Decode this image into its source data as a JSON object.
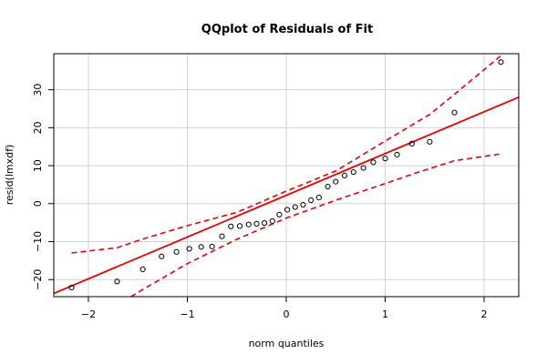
{
  "chart_data": {
    "type": "scatter",
    "title": "QQplot of Residuals of Fit",
    "xlabel": "norm quantiles",
    "ylabel": "resid(lmxdf)",
    "xlim": [
      -2.35,
      2.35
    ],
    "ylim": [
      -24.5,
      39.5
    ],
    "x_ticks": [
      -2,
      -1,
      0,
      1,
      2
    ],
    "y_ticks": [
      -20,
      -10,
      0,
      10,
      20,
      30
    ],
    "grid": true,
    "points": [
      {
        "x": -2.17,
        "y": -22.1
      },
      {
        "x": -1.71,
        "y": -20.5
      },
      {
        "x": -1.45,
        "y": -17.3
      },
      {
        "x": -1.26,
        "y": -13.9
      },
      {
        "x": -1.11,
        "y": -12.7
      },
      {
        "x": -0.98,
        "y": -11.9
      },
      {
        "x": -0.86,
        "y": -11.4
      },
      {
        "x": -0.75,
        "y": -11.3
      },
      {
        "x": -0.65,
        "y": -8.6
      },
      {
        "x": -0.56,
        "y": -6.0
      },
      {
        "x": -0.47,
        "y": -5.9
      },
      {
        "x": -0.38,
        "y": -5.5
      },
      {
        "x": -0.3,
        "y": -5.3
      },
      {
        "x": -0.22,
        "y": -5.1
      },
      {
        "x": -0.14,
        "y": -4.6
      },
      {
        "x": -0.07,
        "y": -2.9
      },
      {
        "x": 0.01,
        "y": -1.6
      },
      {
        "x": 0.09,
        "y": -0.9
      },
      {
        "x": 0.17,
        "y": -0.3
      },
      {
        "x": 0.25,
        "y": 0.9
      },
      {
        "x": 0.33,
        "y": 1.6
      },
      {
        "x": 0.42,
        "y": 4.5
      },
      {
        "x": 0.5,
        "y": 5.8
      },
      {
        "x": 0.59,
        "y": 7.4
      },
      {
        "x": 0.68,
        "y": 8.3
      },
      {
        "x": 0.78,
        "y": 9.4
      },
      {
        "x": 0.88,
        "y": 10.9
      },
      {
        "x": 1.0,
        "y": 11.9
      },
      {
        "x": 1.12,
        "y": 12.9
      },
      {
        "x": 1.27,
        "y": 15.8
      },
      {
        "x": 1.45,
        "y": 16.3
      },
      {
        "x": 1.7,
        "y": 24.0
      },
      {
        "x": 2.17,
        "y": 37.3
      }
    ],
    "reference_line": {
      "intercept": 2.2,
      "slope": 11.0,
      "color": "#ee0000"
    },
    "envelope_upper": [
      {
        "x": -2.17,
        "y": -13.0
      },
      {
        "x": -1.71,
        "y": -11.6
      },
      {
        "x": -1.45,
        "y": -9.3
      },
      {
        "x": -1.0,
        "y": -5.8
      },
      {
        "x": -0.5,
        "y": -2.3
      },
      {
        "x": 0.0,
        "y": 3.3
      },
      {
        "x": 0.5,
        "y": 8.6
      },
      {
        "x": 1.0,
        "y": 16.5
      },
      {
        "x": 1.45,
        "y": 23.5
      },
      {
        "x": 1.7,
        "y": 28.8
      },
      {
        "x": 2.17,
        "y": 39.0
      }
    ],
    "envelope_lower": [
      {
        "x": -1.57,
        "y": -24.5
      },
      {
        "x": -1.45,
        "y": -22.6
      },
      {
        "x": -1.0,
        "y": -15.8
      },
      {
        "x": -0.5,
        "y": -9.4
      },
      {
        "x": 0.0,
        "y": -3.8
      },
      {
        "x": 0.5,
        "y": 0.9
      },
      {
        "x": 1.0,
        "y": 5.3
      },
      {
        "x": 1.3,
        "y": 8.0
      },
      {
        "x": 1.7,
        "y": 11.3
      },
      {
        "x": 2.17,
        "y": 13.1
      }
    ],
    "colors": {
      "points": "#000000",
      "line": "#ee0000",
      "grid": "#d3d3d3"
    }
  }
}
